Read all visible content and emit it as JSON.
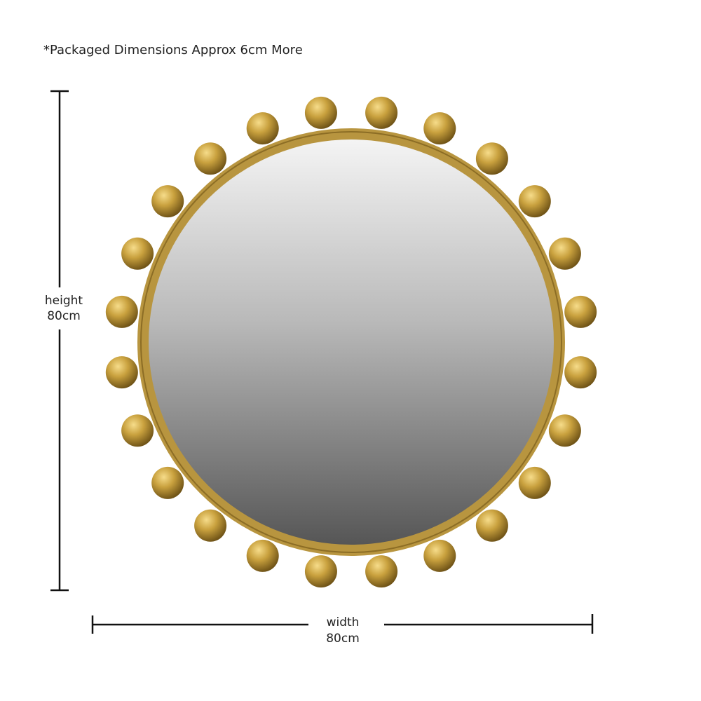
{
  "note": "*Packaged Dimensions Approx 6cm More",
  "height": {
    "label": "height",
    "value": "80cm"
  },
  "width": {
    "label": "width",
    "value": "80cm"
  }
}
